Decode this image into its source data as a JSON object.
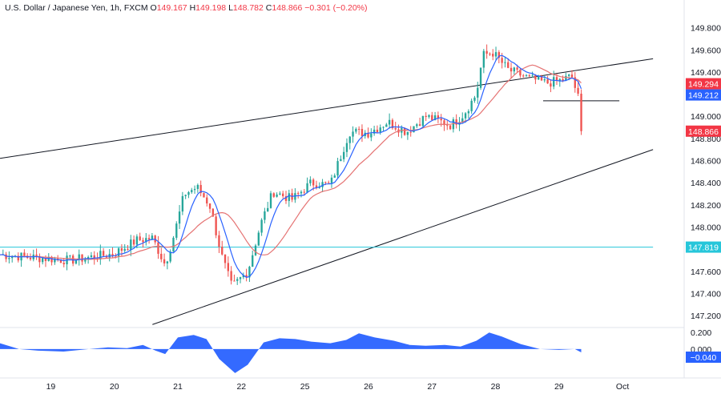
{
  "header": {
    "symbol": "U.S. Dollar / Japanese Yen, 1h, FXCM",
    "o_label": "O",
    "o": "149.167",
    "h_label": "H",
    "h": "149.198",
    "l_label": "L",
    "l": "148.782",
    "c_label": "C",
    "c": "148.866",
    "change": "−0.301 (−0.20%)"
  },
  "colors": {
    "up": "#26a69a",
    "down": "#ef5350",
    "ma_fast": "#2962ff",
    "ma_slow": "#e57373",
    "level_line": "#26c6da",
    "osc": "#2962ff",
    "axis_text": "#131722"
  },
  "badges": [
    {
      "text": "149.294",
      "value": 149.294,
      "color": "#f23645"
    },
    {
      "text": "149.212",
      "value": 149.212,
      "color": "#2962ff"
    },
    {
      "text": "148.866",
      "value": 148.866,
      "color": "#f23645"
    },
    {
      "text": "147.819",
      "value": 147.819,
      "color": "#26c6da"
    }
  ],
  "osc_badge": {
    "text": "−0.040",
    "value": -0.04,
    "color": "#2962ff"
  },
  "chart_data": {
    "type": "candlestick",
    "y_ticks": [
      "149.800",
      "149.600",
      "149.400",
      "149.200",
      "149.000",
      "148.800",
      "148.600",
      "148.400",
      "148.200",
      "148.000",
      "147.800",
      "147.600",
      "147.400",
      "147.200"
    ],
    "y_range": [
      147.1,
      149.92
    ],
    "x_ticks": [
      {
        "label": "19",
        "day": 0
      },
      {
        "label": "20",
        "day": 1
      },
      {
        "label": "21",
        "day": 2
      },
      {
        "label": "22",
        "day": 3
      },
      {
        "label": "25",
        "day": 4
      },
      {
        "label": "26",
        "day": 5
      },
      {
        "label": "27",
        "day": 6
      },
      {
        "label": "28",
        "day": 7
      },
      {
        "label": "29",
        "day": 8
      },
      {
        "label": "Oct",
        "day": 9
      }
    ],
    "x_range_days": [
      -0.8,
      9.97
    ],
    "key_prices": [
      {
        "t": -0.8,
        "p": 147.75
      },
      {
        "t": 0.3,
        "p": 147.7
      },
      {
        "t": 1.0,
        "p": 147.76
      },
      {
        "t": 1.35,
        "p": 147.88
      },
      {
        "t": 1.6,
        "p": 147.9
      },
      {
        "t": 1.8,
        "p": 147.66
      },
      {
        "t": 1.95,
        "p": 147.95
      },
      {
        "t": 2.1,
        "p": 148.3
      },
      {
        "t": 2.3,
        "p": 148.36
      },
      {
        "t": 2.5,
        "p": 148.2
      },
      {
        "t": 2.7,
        "p": 147.72
      },
      {
        "t": 2.85,
        "p": 147.46
      },
      {
        "t": 3.1,
        "p": 147.6
      },
      {
        "t": 3.3,
        "p": 148.02
      },
      {
        "t": 3.5,
        "p": 148.32
      },
      {
        "t": 3.8,
        "p": 148.25
      },
      {
        "t": 4.1,
        "p": 148.4
      },
      {
        "t": 4.4,
        "p": 148.38
      },
      {
        "t": 4.7,
        "p": 148.86
      },
      {
        "t": 5.0,
        "p": 148.85
      },
      {
        "t": 5.3,
        "p": 148.95
      },
      {
        "t": 5.6,
        "p": 148.86
      },
      {
        "t": 5.9,
        "p": 149.0
      },
      {
        "t": 6.3,
        "p": 148.92
      },
      {
        "t": 6.5,
        "p": 149.02
      },
      {
        "t": 6.7,
        "p": 149.2
      },
      {
        "t": 6.8,
        "p": 149.55
      },
      {
        "t": 6.95,
        "p": 149.58
      },
      {
        "t": 7.2,
        "p": 149.42
      },
      {
        "t": 7.5,
        "p": 149.35
      },
      {
        "t": 7.8,
        "p": 149.3
      },
      {
        "t": 8.0,
        "p": 149.32
      },
      {
        "t": 8.2,
        "p": 149.36
      },
      {
        "t": 8.3,
        "p": 149.17
      },
      {
        "t": 8.35,
        "p": 148.866
      }
    ],
    "trend_lines": [
      {
        "name": "upper-channel",
        "from": {
          "t": -0.8,
          "p": 148.62
        },
        "to": {
          "t": 9.48,
          "p": 149.52
        }
      },
      {
        "name": "lower-channel",
        "from": {
          "t": 1.6,
          "p": 147.12
        },
        "to": {
          "t": 9.48,
          "p": 148.7
        }
      },
      {
        "name": "support-level",
        "from": {
          "t": 7.75,
          "p": 149.14
        },
        "to": {
          "t": 8.95,
          "p": 149.14
        }
      },
      {
        "name": "horizontal-level",
        "from": {
          "t": -0.8,
          "p": 147.819
        },
        "to": {
          "t": 9.48,
          "p": 147.819
        }
      }
    ],
    "oscillator": {
      "y_ticks": [
        "0.200",
        "0.000"
      ],
      "range": [
        -0.33,
        0.25
      ],
      "points": [
        {
          "t": -0.8,
          "v": 0.07
        },
        {
          "t": -0.5,
          "v": 0.0
        },
        {
          "t": -0.2,
          "v": -0.02
        },
        {
          "t": 0.2,
          "v": -0.03
        },
        {
          "t": 0.6,
          "v": 0.0
        },
        {
          "t": 0.9,
          "v": 0.02
        },
        {
          "t": 1.2,
          "v": 0.01
        },
        {
          "t": 1.45,
          "v": 0.05
        },
        {
          "t": 1.65,
          "v": -0.02
        },
        {
          "t": 1.8,
          "v": -0.06
        },
        {
          "t": 2.0,
          "v": 0.14
        },
        {
          "t": 2.25,
          "v": 0.17
        },
        {
          "t": 2.45,
          "v": 0.12
        },
        {
          "t": 2.65,
          "v": -0.12
        },
        {
          "t": 2.9,
          "v": -0.29
        },
        {
          "t": 3.1,
          "v": -0.19
        },
        {
          "t": 3.35,
          "v": 0.08
        },
        {
          "t": 3.6,
          "v": 0.13
        },
        {
          "t": 3.85,
          "v": 0.12
        },
        {
          "t": 4.1,
          "v": 0.09
        },
        {
          "t": 4.4,
          "v": 0.07
        },
        {
          "t": 4.65,
          "v": 0.11
        },
        {
          "t": 4.85,
          "v": 0.19
        },
        {
          "t": 5.1,
          "v": 0.14
        },
        {
          "t": 5.4,
          "v": 0.1
        },
        {
          "t": 5.65,
          "v": 0.05
        },
        {
          "t": 5.9,
          "v": 0.04
        },
        {
          "t": 6.2,
          "v": 0.05
        },
        {
          "t": 6.45,
          "v": 0.03
        },
        {
          "t": 6.7,
          "v": 0.1
        },
        {
          "t": 6.9,
          "v": 0.2
        },
        {
          "t": 7.1,
          "v": 0.15
        },
        {
          "t": 7.4,
          "v": 0.06
        },
        {
          "t": 7.7,
          "v": 0.0
        },
        {
          "t": 8.0,
          "v": -0.01
        },
        {
          "t": 8.25,
          "v": 0.0
        },
        {
          "t": 8.35,
          "v": -0.04
        }
      ]
    }
  }
}
